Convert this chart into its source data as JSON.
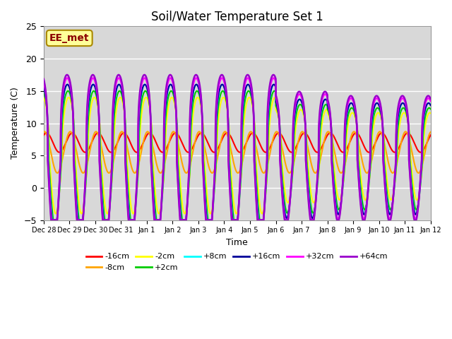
{
  "title": "Soil/Water Temperature Set 1",
  "xlabel": "Time",
  "ylabel": "Temperature (C)",
  "ylim": [
    -5,
    25
  ],
  "background_color": "#d8d8d8",
  "annotation_text": "EE_met",
  "annotation_color": "#8B0000",
  "annotation_bg": "#FFFF99",
  "series": [
    {
      "label": "-16cm",
      "color": "#FF0000",
      "lw": 1.5,
      "zorder": 3
    },
    {
      "label": "-8cm",
      "color": "#FFA500",
      "lw": 1.5,
      "zorder": 3
    },
    {
      "label": "-2cm",
      "color": "#FFFF00",
      "lw": 1.5,
      "zorder": 3
    },
    {
      "label": "+2cm",
      "color": "#00CC00",
      "lw": 1.5,
      "zorder": 4
    },
    {
      "label": "+8cm",
      "color": "#00FFFF",
      "lw": 1.5,
      "zorder": 4
    },
    {
      "label": "+16cm",
      "color": "#000099",
      "lw": 1.5,
      "zorder": 4
    },
    {
      "label": "+32cm",
      "color": "#FF00FF",
      "lw": 1.8,
      "zorder": 5
    },
    {
      "label": "+64cm",
      "color": "#9900CC",
      "lw": 1.8,
      "zorder": 5
    }
  ],
  "tick_labels": [
    "Dec 28",
    "Dec 29",
    "Dec 30",
    "Dec 31",
    "Jan 1",
    "Jan 2",
    "Jan 3",
    "Jan 4",
    "Jan 5",
    "Jan 6",
    "Jan 7",
    "Jan 8",
    "Jan 9",
    "Jan 10",
    "Jan 11",
    "Jan 12"
  ],
  "grid_color": "#ffffff",
  "yticks": [
    -5,
    0,
    5,
    10,
    15,
    20,
    25
  ]
}
